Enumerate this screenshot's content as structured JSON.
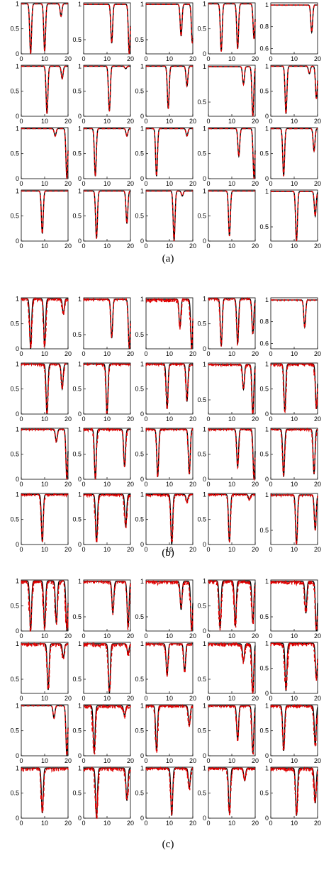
{
  "captions": {
    "a": "(a)",
    "b": "(b)",
    "c": "(c)"
  },
  "style": {
    "solid_color": "#000000",
    "dashed_color": "#e00000"
  },
  "chart_data": [
    {
      "panel": "(a)",
      "type": "line",
      "grid": "5x4 small multiples",
      "x_ticks": [
        "0",
        "10",
        "20"
      ],
      "xlim": [
        0,
        20
      ],
      "row_yticks": [
        [
          "0",
          "0.5",
          "1"
        ],
        [
          "0",
          "0.5",
          "1"
        ],
        [
          "0",
          "0.5",
          "1"
        ],
        [
          "0",
          "0.5",
          "1"
        ]
      ],
      "special_yticks": {
        "r0c4": [
          "0.6",
          "0.8",
          "1"
        ],
        "r0c1": [
          "0.5",
          "1"
        ],
        "r0c2": [
          "0.5",
          "1"
        ],
        "r0c3": [
          "0.5",
          "1"
        ],
        "r1c2": [
          "0",
          "1"
        ],
        "r1c3": [
          "0.5",
          "1"
        ],
        "r1c4": [
          "0",
          "0.5",
          "1"
        ]
      },
      "subplots": [
        [
          {
            "ymin": 0,
            "dips": [
              [
                4,
                0
              ],
              [
                10,
                0.05
              ],
              [
                17,
                0.75
              ]
            ]
          },
          {
            "ymin": 0.3,
            "dips": [
              [
                12,
                0.45
              ],
              [
                19.5,
                0.3
              ]
            ]
          },
          {
            "ymin": 0.3,
            "dips": [
              [
                15,
                0.55
              ],
              [
                19.8,
                0.45
              ]
            ]
          },
          {
            "ymin": 0,
            "dips": [
              [
                5.5,
                0.05
              ],
              [
                12.5,
                0.1
              ],
              [
                19.5,
                0.3
              ]
            ]
          },
          {
            "ymin": 0.55,
            "dips": [
              [
                17.5,
                0.75
              ]
            ]
          }
        ],
        [
          {
            "ymin": 0,
            "dips": [
              [
                11,
                0.05
              ],
              [
                17.5,
                0.75
              ]
            ]
          },
          {
            "ymin": 0,
            "dips": [
              [
                11,
                0.1
              ],
              [
                18,
                0.95
              ]
            ]
          },
          {
            "ymin": 0,
            "dips": [
              [
                9.5,
                0.15
              ],
              [
                17.5,
                0.6
              ]
            ]
          },
          {
            "ymin": 0.3,
            "dips": [
              [
                15,
                0.75
              ],
              [
                19,
                0.3
              ]
            ]
          },
          {
            "ymin": 0,
            "dips": [
              [
                6.5,
                0.05
              ],
              [
                16.5,
                0.85
              ],
              [
                19.5,
                0.35
              ]
            ]
          }
        ],
        [
          {
            "ymin": 0,
            "dips": [
              [
                14.5,
                0.85
              ],
              [
                19.5,
                0
              ]
            ]
          },
          {
            "ymin": 0,
            "dips": [
              [
                5,
                0.05
              ],
              [
                18.5,
                0.85
              ]
            ]
          },
          {
            "ymin": 0,
            "dips": [
              [
                4.5,
                0.05
              ],
              [
                17.5,
                0.85
              ]
            ]
          },
          {
            "ymin": 0,
            "dips": [
              [
                13,
                0.45
              ],
              [
                19.5,
                0
              ]
            ]
          },
          {
            "ymin": 0,
            "dips": [
              [
                5.5,
                0.05
              ],
              [
                18.5,
                0.55
              ]
            ]
          }
        ],
        [
          {
            "ymin": 0,
            "dips": [
              [
                9,
                0.15
              ]
            ]
          },
          {
            "ymin": 0,
            "dips": [
              [
                5.5,
                0.05
              ],
              [
                18.5,
                0.35
              ]
            ]
          },
          {
            "ymin": 0,
            "dips": [
              [
                12,
                0
              ],
              [
                15.5,
                0.9
              ]
            ]
          },
          {
            "ymin": 0,
            "dips": [
              [
                9,
                0.1
              ]
            ]
          },
          {
            "ymin": 0.3,
            "dips": [
              [
                11,
                0.3
              ],
              [
                19,
                0.65
              ]
            ]
          }
        ]
      ]
    },
    {
      "panel": "(b)",
      "type": "line",
      "grid": "5x4 small multiples",
      "x_ticks": [
        "0",
        "10",
        "20"
      ],
      "xlim": [
        0,
        20
      ],
      "subplots": [
        [
          {
            "ymin": 0,
            "dips": [
              [
                4,
                0
              ],
              [
                10,
                0.05
              ],
              [
                18,
                0.7
              ]
            ],
            "noise": 0.15
          },
          {
            "ymin": 0.3,
            "dips": [
              [
                12,
                0.45
              ],
              [
                19.5,
                0.3
              ]
            ],
            "noise": 0.05
          },
          {
            "ymin": 0.3,
            "dips": [
              [
                14.5,
                0.6
              ],
              [
                19.5,
                0.3
              ]
            ],
            "noise": 0.15
          },
          {
            "ymin": 0,
            "dips": [
              [
                5.5,
                0.05
              ],
              [
                12.5,
                0.1
              ],
              [
                19,
                0.3
              ]
            ],
            "noise": 0.08
          },
          {
            "ymin": 0.55,
            "dips": [
              [
                14.5,
                0.75
              ]
            ],
            "noise": 0.02
          }
        ],
        [
          {
            "ymin": 0,
            "dips": [
              [
                11,
                0
              ],
              [
                17.5,
                0.5
              ]
            ],
            "noise": 0.12
          },
          {
            "ymin": 0,
            "dips": [
              [
                10,
                0
              ]
            ],
            "noise": 0.1
          },
          {
            "ymin": 0,
            "dips": [
              [
                9,
                0.1
              ],
              [
                17.5,
                0.25
              ]
            ],
            "noise": 0.12
          },
          {
            "ymin": 0.3,
            "dips": [
              [
                15,
                0.65
              ],
              [
                19,
                0.3
              ]
            ],
            "noise": 0.08
          },
          {
            "ymin": 0,
            "dips": [
              [
                6,
                0.05
              ],
              [
                19.5,
                0.1
              ]
            ],
            "noise": 0.15
          }
        ],
        [
          {
            "ymin": 0,
            "dips": [
              [
                15,
                0.75
              ],
              [
                19.5,
                0
              ]
            ],
            "noise": 0.06
          },
          {
            "ymin": 0,
            "dips": [
              [
                5,
                0
              ],
              [
                17.5,
                0.25
              ]
            ],
            "noise": 0.12
          },
          {
            "ymin": 0,
            "dips": [
              [
                5,
                0.05
              ],
              [
                18.5,
                0.1
              ]
            ],
            "noise": 0.08
          },
          {
            "ymin": 0,
            "dips": [
              [
                12.5,
                0.25
              ],
              [
                19.5,
                0
              ]
            ],
            "noise": 0.08
          },
          {
            "ymin": 0,
            "dips": [
              [
                5.5,
                0.05
              ],
              [
                18.5,
                0.1
              ]
            ],
            "noise": 0.1
          }
        ],
        [
          {
            "ymin": 0,
            "dips": [
              [
                9,
                0.05
              ]
            ],
            "noise": 0.1
          },
          {
            "ymin": 0,
            "dips": [
              [
                5.5,
                0.05
              ],
              [
                18,
                0.35
              ]
            ],
            "noise": 0.15
          },
          {
            "ymin": 0,
            "dips": [
              [
                11,
                0
              ],
              [
                17.5,
                0.85
              ]
            ],
            "noise": 0.12
          },
          {
            "ymin": 0,
            "dips": [
              [
                9,
                0.05
              ],
              [
                17.5,
                0.9
              ]
            ],
            "noise": 0.08
          },
          {
            "ymin": 0.3,
            "dips": [
              [
                11,
                0.3
              ],
              [
                19,
                0.5
              ]
            ],
            "noise": 0.06
          }
        ]
      ]
    },
    {
      "panel": "(c)",
      "type": "line",
      "grid": "5x4 small multiples",
      "x_ticks": [
        "0",
        "10",
        "20"
      ],
      "xlim": [
        0,
        20
      ],
      "subplots": [
        [
          {
            "ymin": 0,
            "dips": [
              [
                4,
                0
              ],
              [
                10,
                0.05
              ],
              [
                15,
                0.15
              ],
              [
                19.5,
                0
              ]
            ],
            "noise": 0.2
          },
          {
            "ymin": 0.3,
            "dips": [
              [
                12.5,
                0.55
              ],
              [
                19,
                0.35
              ]
            ],
            "noise": 0.1
          },
          {
            "ymin": 0.3,
            "dips": [
              [
                15,
                0.6
              ],
              [
                19.5,
                0.3
              ]
            ],
            "noise": 0.15
          },
          {
            "ymin": 0,
            "dips": [
              [
                5,
                0.05
              ],
              [
                11.5,
                0.1
              ],
              [
                19,
                0.15
              ]
            ],
            "noise": 0.2
          },
          {
            "ymin": 0.3,
            "dips": [
              [
                15,
                0.55
              ],
              [
                19.5,
                0.3
              ]
            ],
            "noise": 0.15
          }
        ],
        [
          {
            "ymin": 0.3,
            "dips": [
              [
                11.5,
                0.35
              ],
              [
                18,
                0.8
              ]
            ],
            "noise": 0.15
          },
          {
            "ymin": 0.3,
            "dips": [
              [
                11,
                0.3
              ],
              [
                19,
                0.85
              ]
            ],
            "noise": 0.15
          },
          {
            "ymin": 0.3,
            "dips": [
              [
                9,
                0.55
              ],
              [
                16.5,
                0.6
              ]
            ],
            "noise": 0.1
          },
          {
            "ymin": 0.3,
            "dips": [
              [
                15,
                0.75
              ],
              [
                19,
                0.3
              ]
            ],
            "noise": 0.15
          },
          {
            "ymin": 0,
            "dips": [
              [
                6.5,
                0.05
              ],
              [
                19.5,
                0.3
              ]
            ],
            "noise": 0.2
          }
        ],
        [
          {
            "ymin": 0,
            "dips": [
              [
                14,
                0.75
              ],
              [
                19.5,
                0
              ]
            ],
            "noise": 0.02
          },
          {
            "ymin": 0,
            "dips": [
              [
                4.5,
                0.05
              ],
              [
                17.5,
                0.8
              ]
            ],
            "noise": 0.2
          },
          {
            "ymin": 0,
            "dips": [
              [
                4.5,
                0.1
              ],
              [
                18.5,
                0.6
              ]
            ],
            "noise": 0.15
          },
          {
            "ymin": 0,
            "dips": [
              [
                12.5,
                0.3
              ],
              [
                19,
                0.05
              ]
            ],
            "noise": 0.1
          },
          {
            "ymin": 0,
            "dips": [
              [
                5.5,
                0.1
              ],
              [
                19,
                0.2
              ]
            ],
            "noise": 0.15
          }
        ],
        [
          {
            "ymin": 0,
            "dips": [
              [
                9,
                0.1
              ]
            ],
            "noise": 0.2
          },
          {
            "ymin": 0,
            "dips": [
              [
                5.5,
                0
              ],
              [
                18.5,
                0.35
              ]
            ],
            "noise": 0.2
          },
          {
            "ymin": 0,
            "dips": [
              [
                11,
                0.05
              ],
              [
                18.5,
                0.6
              ]
            ],
            "noise": 0.15
          },
          {
            "ymin": 0,
            "dips": [
              [
                9,
                0.1
              ],
              [
                15.5,
                0.75
              ]
            ],
            "noise": 0.15
          },
          {
            "ymin": 0,
            "dips": [
              [
                11,
                0.05
              ],
              [
                19,
                0.3
              ]
            ],
            "noise": 0.2
          }
        ]
      ]
    }
  ]
}
